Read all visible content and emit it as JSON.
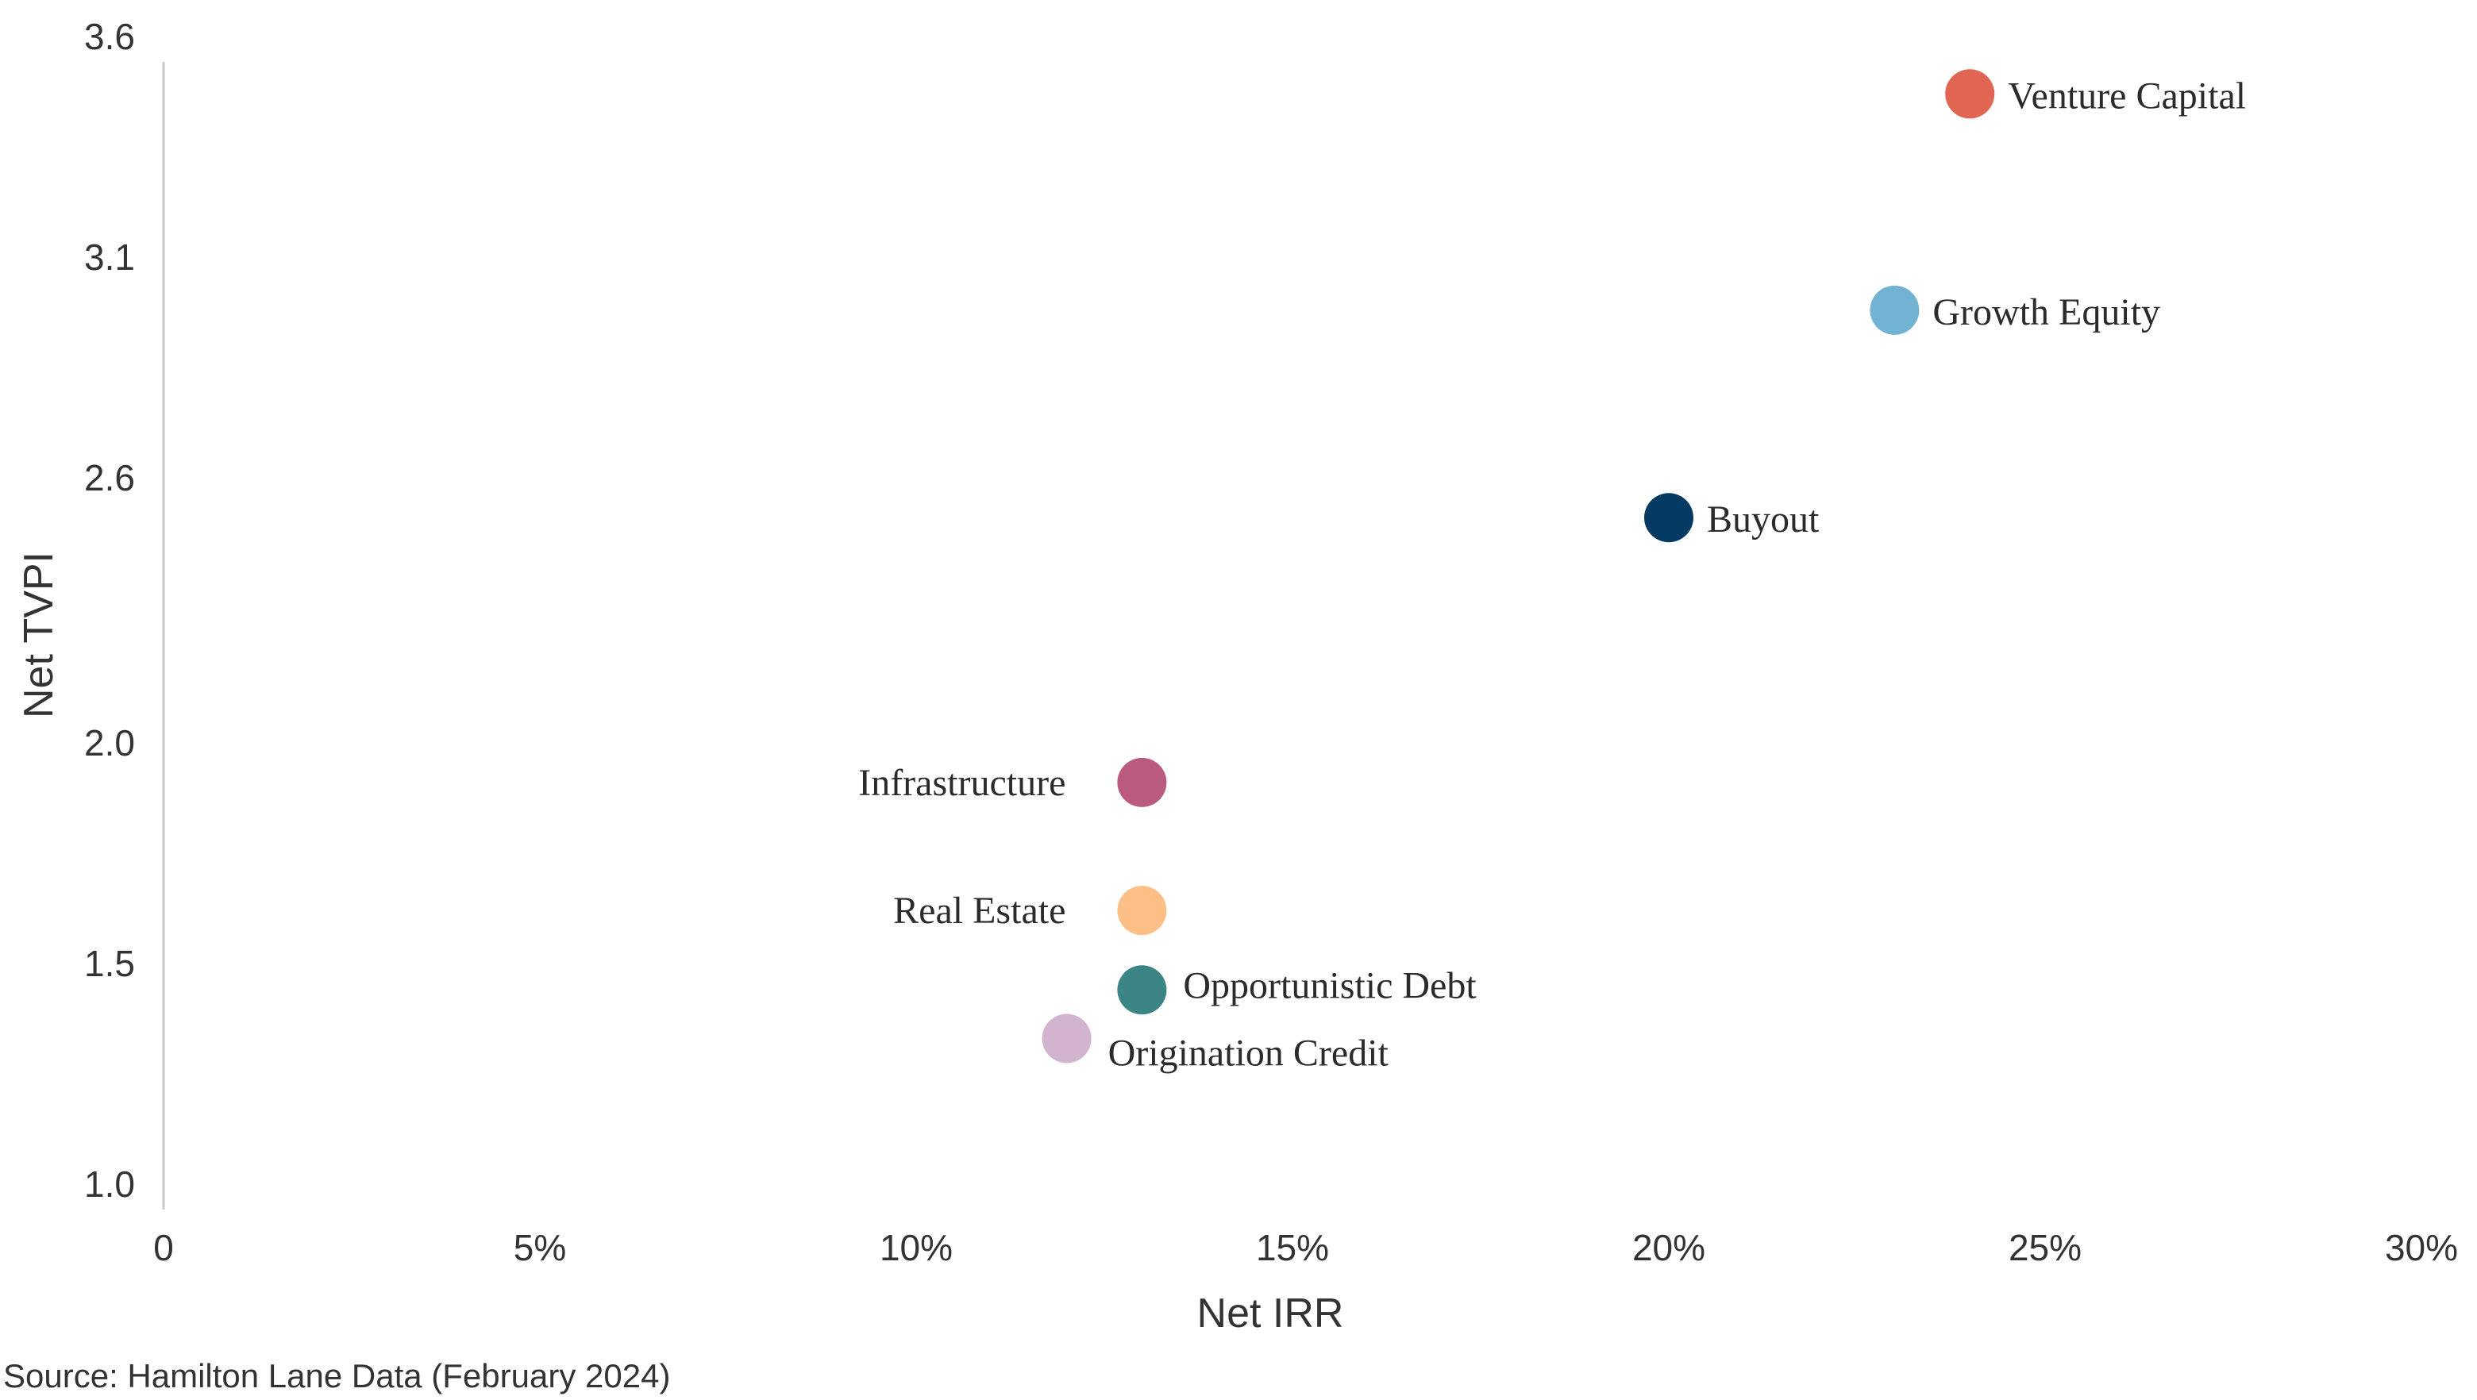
{
  "chart_data": {
    "type": "scatter",
    "title": "",
    "xlabel": "Net IRR",
    "ylabel": "Net TVPI",
    "xlim": [
      0,
      30
    ],
    "ylim": [
      1.0,
      3.6
    ],
    "x_ticks": [
      "0",
      "5%",
      "10%",
      "15%",
      "20%",
      "25%",
      "30%"
    ],
    "x_tick_values": [
      0,
      5,
      10,
      15,
      20,
      25,
      30
    ],
    "y_ticks": [
      "3.6",
      "3.1",
      "2.6",
      "2.0",
      "1.5",
      "1.0"
    ],
    "y_tick_values": [
      3.6,
      3.1,
      2.6,
      2.0,
      1.5,
      1.0
    ],
    "grid": false,
    "points": [
      {
        "name": "Venture Capital",
        "x": 24.0,
        "y": 3.47,
        "color": "#E06552",
        "label_side": "right"
      },
      {
        "name": "Growth Equity",
        "x": 23.0,
        "y": 2.98,
        "color": "#72B2D3",
        "label_side": "right"
      },
      {
        "name": "Buyout",
        "x": 20.0,
        "y": 2.51,
        "color": "#053B63",
        "label_side": "right"
      },
      {
        "name": "Infrastructure",
        "x": 13.0,
        "y": 1.91,
        "color": "#BA5A7E",
        "label_side": "left"
      },
      {
        "name": "Real Estate",
        "x": 13.0,
        "y": 1.62,
        "color": "#FDBF86",
        "label_side": "left"
      },
      {
        "name": "Opportunistic Debt",
        "x": 13.0,
        "y": 1.44,
        "color": "#3B8585",
        "label_side": "right-up"
      },
      {
        "name": "Origination Credit",
        "x": 12.0,
        "y": 1.33,
        "color": "#D3B4CE",
        "label_side": "right-down"
      }
    ]
  },
  "source": "Source: Hamilton Lane Data (February 2024)"
}
